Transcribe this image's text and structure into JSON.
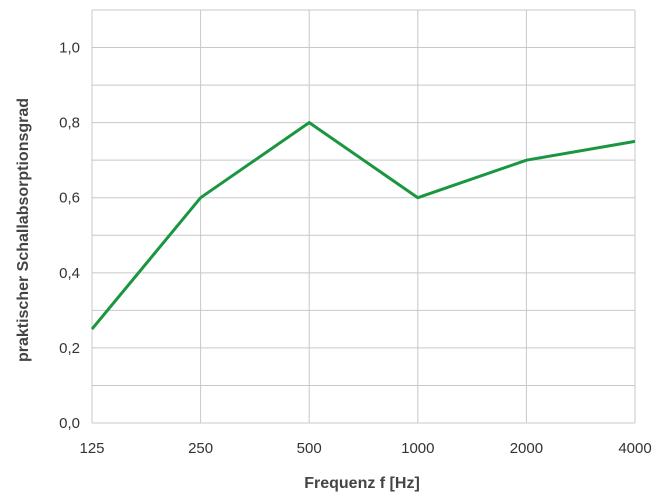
{
  "chart_data": {
    "type": "line",
    "title": "",
    "xlabel": "Frequenz f [Hz]",
    "ylabel": "praktischer Schallabsorptionsgrad",
    "categories": [
      "125",
      "250",
      "500",
      "1000",
      "2000",
      "4000"
    ],
    "series": [
      {
        "values": [
          0.25,
          0.6,
          0.8,
          0.6,
          0.7,
          0.75
        ],
        "color": "#1a9641"
      }
    ],
    "ylim": [
      0.0,
      1.1
    ],
    "y_ticks": [
      0.0,
      0.2,
      0.4,
      0.6,
      0.8,
      1.0
    ],
    "y_tick_labels": [
      "0,0",
      "0,2",
      "0,4",
      "0,6",
      "0,8",
      "1,0"
    ],
    "y_gridlines": [
      0.0,
      0.1,
      0.2,
      0.3,
      0.4,
      0.5,
      0.6,
      0.7,
      0.8,
      0.9,
      1.0,
      1.1
    ],
    "grid": true,
    "legend": "none",
    "grid_color": "#c8c8c8",
    "text_color": "#333333"
  }
}
